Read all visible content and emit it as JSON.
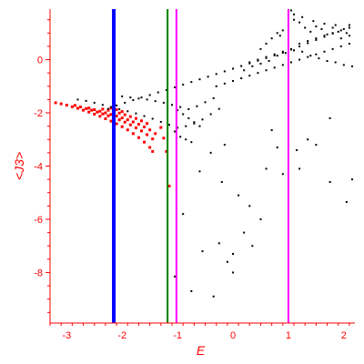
{
  "chart_data": {
    "type": "scatter",
    "title": "",
    "xlabel": "E",
    "ylabel": "<J3>",
    "xlim": [
      -3.3,
      2.2
    ],
    "ylim": [
      -9.9,
      1.9
    ],
    "xticks": [
      -3,
      -2,
      -1,
      0,
      1,
      2
    ],
    "yticks": [
      0,
      -2,
      -4,
      -6,
      -8
    ],
    "axis_color": "#ff0000",
    "vertical_lines": [
      {
        "x": -2.15,
        "color": "#0000ff",
        "style": "thick"
      },
      {
        "x": -1.18,
        "color": "#008000",
        "style": "thin"
      },
      {
        "x": -1.02,
        "color": "#ff00ff",
        "style": "thin"
      },
      {
        "x": 1.0,
        "color": "#ff00ff",
        "style": "thin"
      }
    ],
    "series": [
      {
        "color": "#ff0000",
        "points": [
          [
            -3.2,
            -1.62
          ],
          [
            -3.1,
            -1.66
          ],
          [
            -3.0,
            -1.71
          ],
          [
            -2.9,
            -1.77
          ],
          [
            -2.8,
            -1.83
          ],
          [
            -2.7,
            -1.9
          ],
          [
            -2.6,
            -1.97
          ],
          [
            -2.5,
            -2.05
          ],
          [
            -2.4,
            -2.13
          ],
          [
            -2.3,
            -2.22
          ],
          [
            -2.2,
            -2.31
          ],
          [
            -2.1,
            -2.41
          ],
          [
            -2.0,
            -2.52
          ],
          [
            -1.9,
            -2.64
          ],
          [
            -1.8,
            -2.78
          ],
          [
            -1.7,
            -2.93
          ],
          [
            -1.6,
            -3.1
          ],
          [
            -1.5,
            -3.3
          ],
          [
            -1.45,
            -3.45
          ],
          [
            -2.85,
            -1.72
          ],
          [
            -2.75,
            -1.78
          ],
          [
            -2.65,
            -1.84
          ],
          [
            -2.55,
            -1.9
          ],
          [
            -2.45,
            -1.97
          ],
          [
            -2.35,
            -2.04
          ],
          [
            -2.25,
            -2.11
          ],
          [
            -2.15,
            -2.18
          ],
          [
            -2.05,
            -2.26
          ],
          [
            -1.95,
            -2.35
          ],
          [
            -1.85,
            -2.45
          ],
          [
            -1.75,
            -2.56
          ],
          [
            -1.65,
            -2.68
          ],
          [
            -1.55,
            -2.82
          ],
          [
            -1.45,
            -2.98
          ],
          [
            -2.6,
            -1.82
          ],
          [
            -2.5,
            -1.88
          ],
          [
            -2.4,
            -1.94
          ],
          [
            -2.3,
            -2.0
          ],
          [
            -2.2,
            -2.06
          ],
          [
            -2.1,
            -2.12
          ],
          [
            -2.0,
            -2.19
          ],
          [
            -1.9,
            -2.26
          ],
          [
            -1.8,
            -2.34
          ],
          [
            -1.7,
            -2.43
          ],
          [
            -1.6,
            -2.53
          ],
          [
            -1.5,
            -2.64
          ],
          [
            -1.4,
            -2.78
          ],
          [
            -2.35,
            -1.86
          ],
          [
            -2.25,
            -1.9
          ],
          [
            -2.15,
            -1.95
          ],
          [
            -2.05,
            -2.01
          ],
          [
            -1.95,
            -2.07
          ],
          [
            -1.85,
            -2.14
          ],
          [
            -1.75,
            -2.21
          ],
          [
            -1.65,
            -2.3
          ],
          [
            -1.55,
            -2.4
          ],
          [
            -2.2,
            -1.82
          ],
          [
            -2.1,
            -1.88
          ],
          [
            -2.0,
            -1.95
          ],
          [
            -1.3,
            -2.55
          ],
          [
            -1.25,
            -2.95
          ],
          [
            -1.2,
            -3.45
          ],
          [
            -1.15,
            -4.75
          ]
        ]
      },
      {
        "color": "#000000",
        "points": [
          [
            -2.25,
            -1.85
          ],
          [
            -2.1,
            -1.72
          ],
          [
            -1.95,
            -1.62
          ],
          [
            -1.8,
            -1.52
          ],
          [
            -1.65,
            -1.42
          ],
          [
            -1.5,
            -1.33
          ],
          [
            -1.35,
            -1.23
          ],
          [
            -1.2,
            -1.14
          ],
          [
            -1.05,
            -1.04
          ],
          [
            -0.9,
            -0.94
          ],
          [
            -0.75,
            -0.84
          ],
          [
            -0.6,
            -0.74
          ],
          [
            -0.45,
            -0.64
          ],
          [
            -0.3,
            -0.54
          ],
          [
            -0.15,
            -0.44
          ],
          [
            0.0,
            -0.34
          ],
          [
            0.15,
            -0.24
          ],
          [
            0.3,
            -0.14
          ],
          [
            0.45,
            -0.04
          ],
          [
            0.6,
            0.06
          ],
          [
            0.75,
            0.16
          ],
          [
            0.9,
            0.26
          ],
          [
            1.05,
            0.38
          ],
          [
            1.2,
            0.5
          ],
          [
            1.35,
            0.62
          ],
          [
            1.5,
            0.74
          ],
          [
            1.65,
            0.86
          ],
          [
            1.8,
            0.98
          ],
          [
            1.95,
            1.1
          ],
          [
            2.1,
            1.2
          ],
          [
            -2.8,
            -1.5
          ],
          [
            -2.65,
            -1.55
          ],
          [
            -2.5,
            -1.62
          ],
          [
            -2.35,
            -1.7
          ],
          [
            -2.2,
            -1.78
          ],
          [
            -2.05,
            -1.86
          ],
          [
            -1.9,
            -1.94
          ],
          [
            -1.75,
            -2.02
          ],
          [
            -1.6,
            -2.12
          ],
          [
            -1.45,
            -2.22
          ],
          [
            -1.3,
            -2.34
          ],
          [
            -1.15,
            -2.45
          ],
          [
            -1.0,
            -2.56
          ],
          [
            -0.85,
            -2.5
          ],
          [
            -0.7,
            -2.4
          ],
          [
            -0.55,
            -2.25
          ],
          [
            -0.4,
            -2.05
          ],
          [
            -0.25,
            -1.85
          ],
          [
            -2.0,
            -1.38
          ],
          [
            -1.85,
            -1.42
          ],
          [
            -1.7,
            -1.46
          ],
          [
            -1.55,
            -1.5
          ],
          [
            -1.4,
            -1.56
          ],
          [
            -1.25,
            -1.62
          ],
          [
            -1.1,
            -1.7
          ],
          [
            -0.95,
            -1.78
          ],
          [
            -0.8,
            -1.86
          ],
          [
            -0.65,
            -1.75
          ],
          [
            -0.5,
            -1.6
          ],
          [
            -0.35,
            -1.45
          ],
          [
            -1.0,
            -1.9
          ],
          [
            -0.9,
            -2.05
          ],
          [
            -0.8,
            -2.2
          ],
          [
            -0.7,
            -2.35
          ],
          [
            -0.6,
            -2.5
          ],
          [
            -0.95,
            -2.9
          ],
          [
            -0.85,
            -3.0
          ],
          [
            -0.75,
            -3.1
          ],
          [
            -1.05,
            -2.7
          ],
          [
            -0.3,
            -1.0
          ],
          [
            -0.15,
            -0.9
          ],
          [
            0.0,
            -0.8
          ],
          [
            0.15,
            -0.7
          ],
          [
            0.3,
            -0.6
          ],
          [
            0.45,
            -0.5
          ],
          [
            0.6,
            -0.4
          ],
          [
            0.75,
            -0.3
          ],
          [
            0.9,
            -0.2
          ],
          [
            1.05,
            -0.1
          ],
          [
            1.2,
            0.0
          ],
          [
            1.35,
            0.1
          ],
          [
            1.5,
            0.2
          ],
          [
            1.65,
            0.3
          ],
          [
            1.8,
            0.4
          ],
          [
            1.95,
            0.5
          ],
          [
            2.1,
            0.6
          ],
          [
            0.3,
            -0.1
          ],
          [
            0.45,
            0.0
          ],
          [
            0.6,
            0.1
          ],
          [
            0.75,
            0.2
          ],
          [
            0.9,
            0.3
          ],
          [
            1.05,
            0.4
          ],
          [
            1.2,
            0.6
          ],
          [
            1.35,
            0.7
          ],
          [
            1.5,
            0.8
          ],
          [
            1.65,
            0.9
          ],
          [
            1.8,
            1.0
          ],
          [
            1.95,
            0.8
          ],
          [
            2.1,
            0.9
          ],
          [
            0.5,
            0.4
          ],
          [
            0.6,
            0.6
          ],
          [
            0.7,
            0.8
          ],
          [
            0.8,
            1.0
          ],
          [
            0.9,
            1.1
          ],
          [
            1.0,
            1.3
          ],
          [
            1.1,
            1.5
          ],
          [
            1.2,
            1.4
          ],
          [
            1.3,
            1.2
          ],
          [
            1.4,
            1.05
          ],
          [
            1.5,
            1.25
          ],
          [
            1.6,
            1.15
          ],
          [
            1.7,
            0.95
          ],
          [
            1.8,
            1.2
          ],
          [
            1.9,
            1.05
          ],
          [
            2.0,
            1.15
          ],
          [
            2.1,
            1.3
          ],
          [
            0.2,
            -0.4
          ],
          [
            0.35,
            -0.25
          ],
          [
            0.5,
            -0.15
          ],
          [
            0.65,
            -0.05
          ],
          [
            0.8,
            0.15
          ],
          [
            0.95,
            0.25
          ],
          [
            1.1,
            0.35
          ],
          [
            1.25,
            0.3
          ],
          [
            1.4,
            0.15
          ],
          [
            1.55,
            0.05
          ],
          [
            1.7,
            -0.05
          ],
          [
            1.85,
            -0.1
          ],
          [
            2.0,
            -0.2
          ],
          [
            2.15,
            -0.25
          ],
          [
            1.05,
            1.85
          ],
          [
            1.1,
            1.7
          ],
          [
            0.85,
            0.9
          ],
          [
            1.25,
            1.6
          ],
          [
            1.45,
            1.45
          ],
          [
            1.65,
            1.35
          ],
          [
            1.85,
            1.3
          ],
          [
            2.05,
            1.0
          ],
          [
            -0.4,
            -3.5
          ],
          [
            -0.6,
            -4.2
          ],
          [
            -0.2,
            -4.6
          ],
          [
            0.1,
            -5.1
          ],
          [
            0.5,
            -6.0
          ],
          [
            0.9,
            -4.3
          ],
          [
            1.2,
            -4.1
          ],
          [
            -0.1,
            -7.6
          ],
          [
            -0.35,
            -8.9
          ],
          [
            -0.75,
            -8.7
          ],
          [
            -1.05,
            -8.15
          ],
          [
            -0.55,
            -7.2
          ],
          [
            -0.9,
            -5.8
          ],
          [
            0.3,
            -5.5
          ],
          [
            0.6,
            -4.1
          ],
          [
            0.8,
            -3.3
          ],
          [
            1.15,
            -3.4
          ],
          [
            1.5,
            -3.2
          ],
          [
            1.75,
            -4.6
          ],
          [
            2.05,
            -5.35
          ],
          [
            -0.25,
            -6.9
          ],
          [
            0.0,
            -7.3
          ],
          [
            0.35,
            -7.0
          ],
          [
            0.7,
            -2.65
          ],
          [
            1.35,
            -3.0
          ],
          [
            1.75,
            -2.2
          ],
          [
            2.15,
            -4.5
          ],
          [
            0.2,
            -6.5
          ],
          [
            0.0,
            -8.0
          ],
          [
            -0.15,
            -3.2
          ]
        ]
      }
    ]
  }
}
